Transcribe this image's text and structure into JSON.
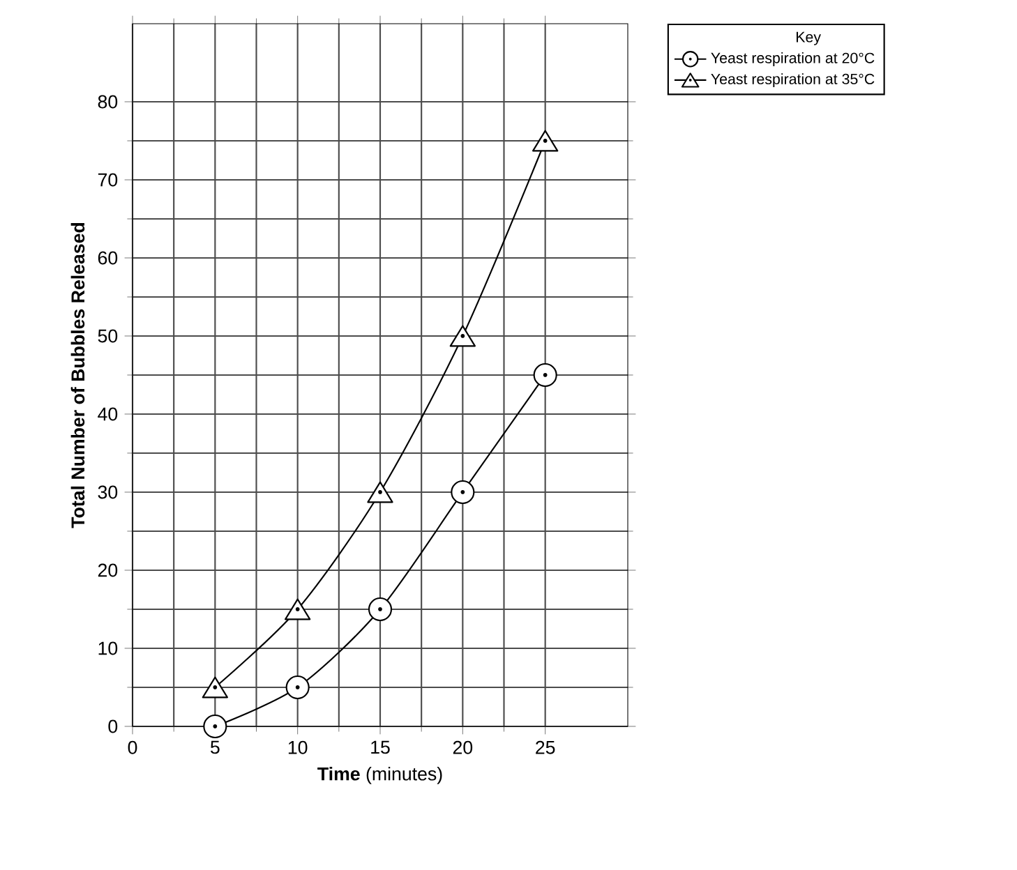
{
  "chart_data": {
    "type": "line",
    "xlabel": "**Time** (minutes)",
    "ylabel": "Total Number of Bubbles Released",
    "legend_title": "Key",
    "x": [
      5,
      10,
      15,
      20,
      25
    ],
    "series": [
      {
        "name": "Yeast respiration at 20°C",
        "color": "#000000",
        "marker": "circle",
        "values": [
          0,
          5,
          15,
          30,
          45
        ]
      },
      {
        "name": "Yeast respiration at 35°C",
        "color": "#000000",
        "marker": "triangle",
        "values": [
          5,
          15,
          30,
          50,
          75
        ]
      }
    ],
    "xlim": [
      0,
      30
    ],
    "ylim": [
      0,
      90
    ],
    "xticks": [
      0,
      5,
      10,
      15,
      20,
      25
    ],
    "yticks": [
      0,
      10,
      20,
      30,
      40,
      50,
      60,
      70,
      80
    ],
    "grid": true,
    "legend": "top right",
    "line_style": "solid"
  }
}
